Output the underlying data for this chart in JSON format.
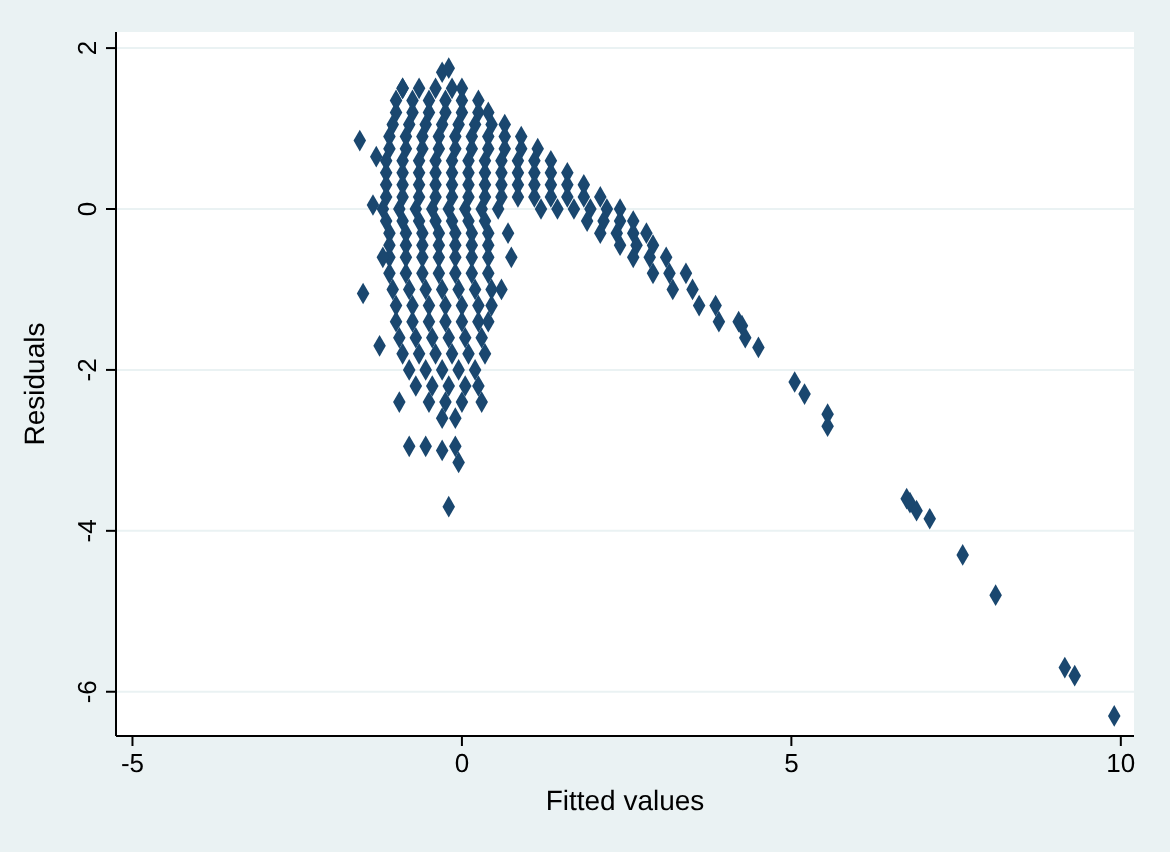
{
  "chart_data": {
    "type": "scatter",
    "xlabel": "Fitted values",
    "ylabel": "Residuals",
    "xlim": [
      -5.25,
      10.2
    ],
    "ylim": [
      -6.55,
      2.2
    ],
    "xticks": [
      -5,
      0,
      5,
      10
    ],
    "yticks": [
      -6,
      -4,
      -2,
      0,
      2
    ],
    "grid": "y",
    "marker": "diamond",
    "series": [
      {
        "color": "#1a476f",
        "x": [
          -0.9,
          -0.65,
          -0.4,
          -0.15,
          0.0,
          -1.0,
          -0.75,
          -0.5,
          -0.25,
          0.0,
          0.25,
          -1.0,
          -0.75,
          -0.5,
          -0.25,
          0,
          0.25,
          0.4,
          -1.05,
          -0.8,
          -0.55,
          -0.3,
          -0.05,
          0.2,
          0.45,
          0.65,
          -1.1,
          -0.85,
          -0.6,
          -0.35,
          -0.1,
          0.15,
          0.4,
          0.65,
          0.9,
          -1.1,
          -0.85,
          -0.6,
          -0.35,
          -0.1,
          0.15,
          0.4,
          0.65,
          0.9,
          1.15,
          -1.15,
          -0.9,
          -0.65,
          -0.4,
          -0.15,
          0.1,
          0.35,
          0.6,
          0.85,
          1.1,
          1.35,
          -1.15,
          -0.9,
          -0.65,
          -0.4,
          -0.15,
          0.1,
          0.35,
          0.6,
          0.85,
          1.1,
          1.35,
          1.6,
          -1.15,
          -0.9,
          -0.65,
          -0.4,
          -0.15,
          0.1,
          0.35,
          0.6,
          0.85,
          1.1,
          1.35,
          1.6,
          1.85,
          -1.15,
          -0.9,
          -0.65,
          -0.4,
          -0.15,
          0.1,
          0.35,
          0.6,
          0.85,
          1.1,
          1.35,
          1.6,
          1.85,
          2.1,
          -1.2,
          -0.95,
          -0.7,
          -0.45,
          -0.2,
          0.05,
          0.3,
          0.55,
          1.2,
          1.45,
          1.7,
          1.95,
          2.2,
          2.4,
          -1.15,
          -0.9,
          -0.65,
          -0.4,
          -0.15,
          0.1,
          0.35,
          1.9,
          2.15,
          2.4,
          2.6,
          -1.1,
          -0.85,
          -0.6,
          -0.35,
          -0.1,
          0.15,
          0.4,
          0.7,
          2.1,
          2.35,
          2.6,
          2.8,
          -1.1,
          -0.85,
          -0.6,
          -0.35,
          -0.1,
          0.15,
          0.4,
          2.4,
          2.65,
          2.9,
          -1.1,
          -0.85,
          -0.6,
          -0.35,
          -0.1,
          0.15,
          0.4,
          0.75,
          2.6,
          2.85,
          3.1,
          -1.1,
          -0.85,
          -0.6,
          -0.35,
          -0.1,
          0.15,
          0.4,
          2.9,
          3.15,
          3.4,
          -1.05,
          -0.8,
          -0.55,
          -0.3,
          -0.05,
          0.2,
          0.45,
          0.6,
          3.2,
          3.5,
          -1.0,
          -0.75,
          -0.5,
          -0.25,
          0,
          0.25,
          0.45,
          3.6,
          3.85,
          -1.0,
          -0.75,
          -0.5,
          -0.25,
          0,
          0.25,
          0.4,
          3.9,
          4.2,
          -0.95,
          -0.7,
          -0.45,
          -0.2,
          0.05,
          0.3,
          -0.9,
          -0.65,
          -0.4,
          -0.15,
          0.1,
          0.35,
          -0.8,
          -0.55,
          -0.3,
          -0.05,
          0.2,
          -0.7,
          -0.45,
          -0.2,
          0.05,
          0.25,
          -0.5,
          -0.25,
          0.0,
          0.3,
          -0.3,
          -0.1,
          -1.55,
          -1.5,
          -0.8,
          -0.55,
          -0.3,
          -0.1,
          -0.05,
          -0.2,
          -0.95,
          -1.25,
          5.05,
          5.2,
          5.55,
          5.55,
          6.75,
          6.8,
          6.9,
          7.1,
          7.6,
          8.1,
          9.15,
          9.3,
          9.9,
          4.5,
          4.3,
          4.25,
          -0.9,
          -0.3,
          -0.2,
          -1.3,
          -1.35,
          -1.2
        ],
        "values": [
          1.5,
          1.5,
          1.5,
          1.5,
          1.5,
          1.35,
          1.35,
          1.35,
          1.35,
          1.35,
          1.35,
          1.2,
          1.2,
          1.2,
          1.2,
          1.2,
          1.2,
          1.2,
          1.05,
          1.05,
          1.05,
          1.05,
          1.05,
          1.05,
          1.05,
          1.05,
          0.9,
          0.9,
          0.9,
          0.9,
          0.9,
          0.9,
          0.9,
          0.9,
          0.9,
          0.75,
          0.75,
          0.75,
          0.75,
          0.75,
          0.75,
          0.75,
          0.75,
          0.75,
          0.75,
          0.6,
          0.6,
          0.6,
          0.6,
          0.6,
          0.6,
          0.6,
          0.6,
          0.6,
          0.6,
          0.6,
          0.45,
          0.45,
          0.45,
          0.45,
          0.45,
          0.45,
          0.45,
          0.45,
          0.45,
          0.45,
          0.45,
          0.45,
          0.3,
          0.3,
          0.3,
          0.3,
          0.3,
          0.3,
          0.3,
          0.3,
          0.3,
          0.3,
          0.3,
          0.3,
          0.3,
          0.15,
          0.15,
          0.15,
          0.15,
          0.15,
          0.15,
          0.15,
          0.15,
          0.15,
          0.15,
          0.15,
          0.15,
          0.15,
          0.15,
          0.0,
          0.0,
          0.0,
          0.0,
          0.0,
          0.0,
          0.0,
          0.0,
          0.0,
          0.0,
          0.0,
          0.0,
          0.0,
          0.0,
          -0.15,
          -0.15,
          -0.15,
          -0.15,
          -0.15,
          -0.15,
          -0.15,
          -0.15,
          -0.15,
          -0.15,
          -0.15,
          -0.3,
          -0.3,
          -0.3,
          -0.3,
          -0.3,
          -0.3,
          -0.3,
          -0.3,
          -0.3,
          -0.3,
          -0.3,
          -0.3,
          -0.45,
          -0.45,
          -0.45,
          -0.45,
          -0.45,
          -0.45,
          -0.45,
          -0.45,
          -0.45,
          -0.45,
          -0.6,
          -0.6,
          -0.6,
          -0.6,
          -0.6,
          -0.6,
          -0.6,
          -0.6,
          -0.6,
          -0.6,
          -0.6,
          -0.8,
          -0.8,
          -0.8,
          -0.8,
          -0.8,
          -0.8,
          -0.8,
          -0.8,
          -0.8,
          -0.8,
          -1.0,
          -1.0,
          -1.0,
          -1.0,
          -1.0,
          -1.0,
          -1.0,
          -1.0,
          -1.0,
          -1.0,
          -1.2,
          -1.2,
          -1.2,
          -1.2,
          -1.2,
          -1.2,
          -1.2,
          -1.2,
          -1.2,
          -1.4,
          -1.4,
          -1.4,
          -1.4,
          -1.4,
          -1.4,
          -1.4,
          -1.4,
          -1.4,
          -1.6,
          -1.6,
          -1.6,
          -1.6,
          -1.6,
          -1.6,
          -1.8,
          -1.8,
          -1.8,
          -1.8,
          -1.8,
          -1.8,
          -2.0,
          -2.0,
          -2.0,
          -2.0,
          -2.0,
          -2.2,
          -2.2,
          -2.2,
          -2.2,
          -2.2,
          -2.4,
          -2.4,
          -2.4,
          -2.4,
          -2.6,
          -2.6,
          0.85,
          -1.05,
          -2.95,
          -2.95,
          -3.0,
          -2.95,
          -3.15,
          -3.7,
          -2.4,
          -1.7,
          -2.15,
          -2.3,
          -2.55,
          -2.7,
          -3.6,
          -3.65,
          -3.75,
          -3.85,
          -4.3,
          -4.8,
          -5.7,
          -5.8,
          -6.3,
          -1.72,
          -1.6,
          -1.45,
          1.5,
          1.7,
          1.75,
          0.65,
          0.05,
          -0.6
        ]
      }
    ]
  }
}
